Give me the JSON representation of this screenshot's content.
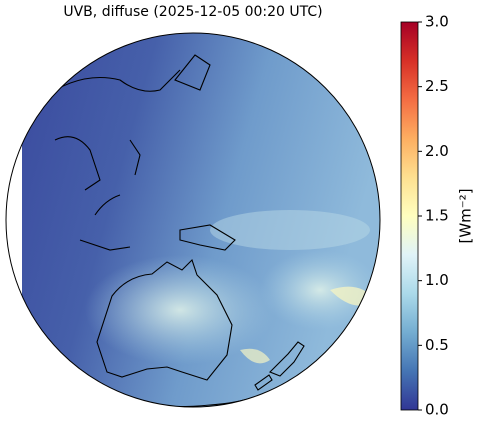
{
  "title": "UVB, diffuse (2025-12-05 00:20 UTC)",
  "colorbar": {
    "label": "[Wm⁻²]",
    "lim": [
      0,
      3
    ],
    "ticks": [
      {
        "value": 0,
        "label": "0.0"
      },
      {
        "value": 0.5,
        "label": "0.5"
      },
      {
        "value": 1,
        "label": "1.0"
      },
      {
        "value": 1.5,
        "label": "1.5"
      },
      {
        "value": 2,
        "label": "2.0"
      },
      {
        "value": 2.5,
        "label": "2.5"
      },
      {
        "value": 3,
        "label": "3.0"
      }
    ]
  }
}
